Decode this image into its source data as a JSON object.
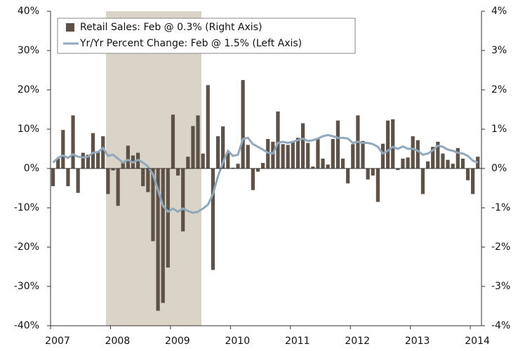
{
  "chart_data": {
    "type": "bar-line",
    "categories": [
      "2007",
      null,
      null,
      null,
      null,
      null,
      null,
      null,
      null,
      null,
      null,
      null,
      "2008",
      null,
      null,
      null,
      null,
      null,
      null,
      null,
      null,
      null,
      null,
      null,
      "2009",
      null,
      null,
      null,
      null,
      null,
      null,
      null,
      null,
      null,
      null,
      null,
      "2010",
      null,
      null,
      null,
      null,
      null,
      null,
      null,
      null,
      null,
      null,
      null,
      "2011",
      null,
      null,
      null,
      null,
      null,
      null,
      null,
      null,
      null,
      null,
      null,
      "2012",
      null,
      null,
      null,
      null,
      null,
      null,
      null,
      null,
      null,
      null,
      null,
      "2013",
      null,
      null,
      null,
      null,
      null,
      null,
      null,
      null,
      null,
      null,
      null,
      "2014",
      null
    ],
    "series": [
      {
        "name": "Retail Sales: Feb @ 0.3% (Right Axis)",
        "type": "bar",
        "axis": "y2",
        "color": "#5e5248",
        "values": [
          -0.45,
          0.25,
          0.98,
          -0.45,
          1.35,
          -0.62,
          0.4,
          0.35,
          0.9,
          0.42,
          0.82,
          -0.65,
          -0.05,
          -0.95,
          0.15,
          0.58,
          0.33,
          0.4,
          -0.45,
          -0.6,
          -1.85,
          -3.62,
          -3.42,
          -2.52,
          1.37,
          -0.18,
          -1.6,
          0.3,
          1.08,
          1.35,
          0.38,
          2.12,
          -2.58,
          0.82,
          1.07,
          0.4,
          0.02,
          0.12,
          2.25,
          0.6,
          -0.55,
          -0.08,
          0.14,
          0.75,
          0.68,
          1.45,
          0.62,
          0.6,
          0.7,
          0.78,
          1.15,
          0.65,
          0.05,
          0.77,
          0.25,
          0.1,
          0.75,
          1.22,
          0.25,
          -0.38,
          0.62,
          1.35,
          0.7,
          -0.28,
          -0.18,
          -0.85,
          0.63,
          1.22,
          1.25,
          -0.04,
          0.25,
          0.28,
          0.82,
          0.72,
          -0.65,
          0.18,
          0.55,
          0.68,
          0.38,
          0.22,
          0.12,
          0.52,
          0.25,
          -0.3,
          -0.65,
          0.3
        ]
      },
      {
        "name": "Yr/Yr Percent Change: Feb @ 1.5% (Left Axis)",
        "type": "line",
        "axis": "y",
        "color": "#8fa8bb",
        "values": [
          1.5,
          2.7,
          3.3,
          2.7,
          3.6,
          3.0,
          2.8,
          3.0,
          4.0,
          4.2,
          5.2,
          3.2,
          3.5,
          2.5,
          1.5,
          2.2,
          1.5,
          2.2,
          1.5,
          0.5,
          -1.5,
          -5.5,
          -9.5,
          -11.0,
          -10.2,
          -11.0,
          -10.2,
          -10.8,
          -11.3,
          -11.0,
          -10.2,
          -9.2,
          -6.5,
          -2.0,
          1.5,
          4.5,
          3.2,
          3.5,
          7.5,
          7.8,
          6.2,
          5.5,
          4.8,
          4.0,
          3.8,
          6.5,
          6.8,
          6.5,
          6.8,
          7.2,
          7.6,
          7.0,
          7.2,
          7.6,
          8.2,
          8.5,
          8.2,
          7.8,
          7.8,
          7.6,
          6.5,
          6.8,
          6.5,
          6.5,
          6.2,
          5.5,
          3.8,
          4.5,
          5.5,
          5.0,
          5.6,
          5.0,
          5.0,
          4.5,
          3.5,
          3.8,
          4.6,
          5.8,
          5.5,
          4.8,
          4.5,
          4.0,
          3.8,
          3.2,
          2.0,
          1.5
        ]
      }
    ],
    "ylim": [
      -40,
      40
    ],
    "yticks": [
      {
        "value": -40,
        "label": "-40%"
      },
      {
        "value": -30,
        "label": "-30%"
      },
      {
        "value": -20,
        "label": "-20%"
      },
      {
        "value": -10,
        "label": "-10%"
      },
      {
        "value": 0,
        "label": "0%"
      },
      {
        "value": 10,
        "label": "10%"
      },
      {
        "value": 20,
        "label": "20%"
      },
      {
        "value": 30,
        "label": "30%"
      },
      {
        "value": 40,
        "label": "40%"
      }
    ],
    "y2lim": [
      -4,
      4
    ],
    "y2ticks": [
      {
        "value": -4,
        "label": "-4%"
      },
      {
        "value": -3,
        "label": "-3%"
      },
      {
        "value": -2,
        "label": "-2%"
      },
      {
        "value": -1,
        "label": "-1%"
      },
      {
        "value": 0,
        "label": "0%"
      },
      {
        "value": 1,
        "label": "1%"
      },
      {
        "value": 2,
        "label": "2%"
      },
      {
        "value": 3,
        "label": "3%"
      },
      {
        "value": 4,
        "label": "4%"
      }
    ],
    "legend": "upper left"
  }
}
